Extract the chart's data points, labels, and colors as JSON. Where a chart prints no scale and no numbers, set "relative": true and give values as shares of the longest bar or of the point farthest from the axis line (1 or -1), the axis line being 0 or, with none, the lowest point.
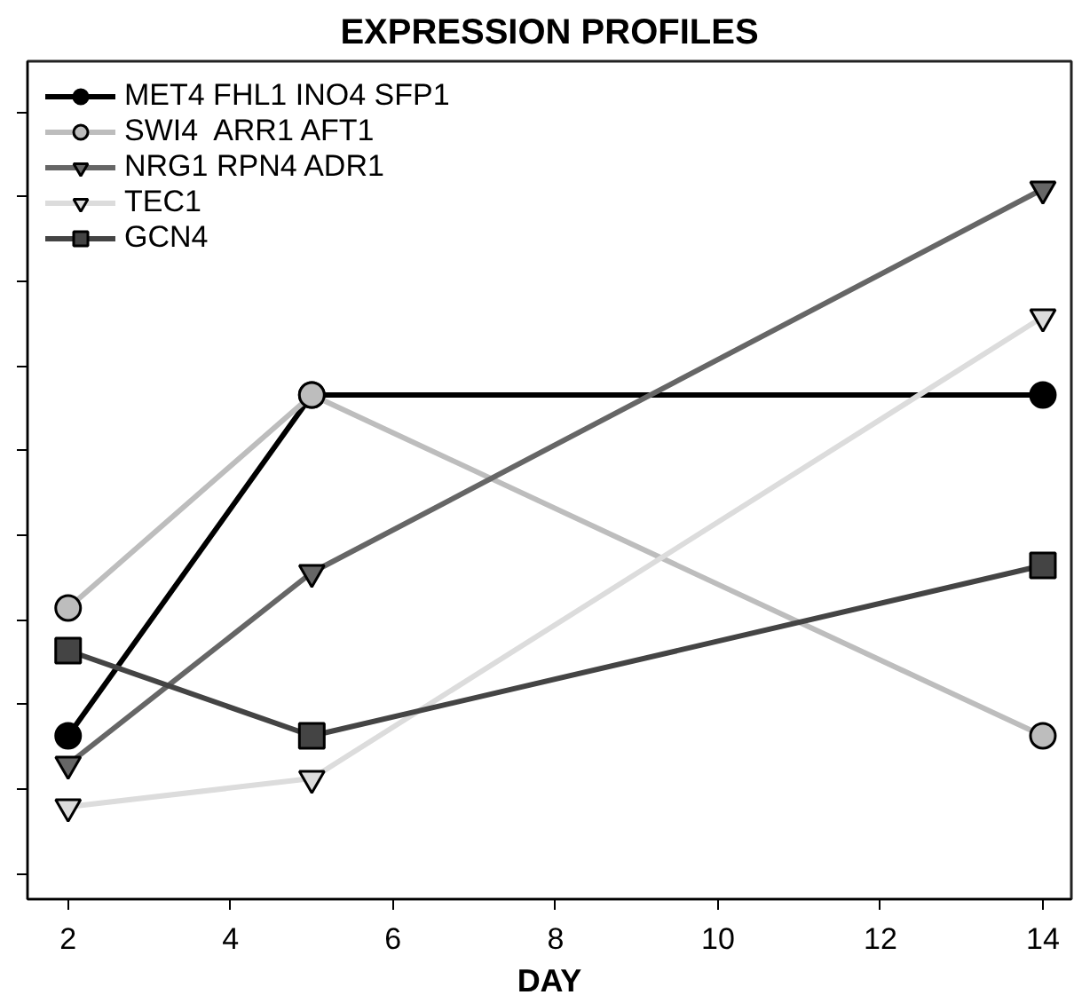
{
  "chart_data": {
    "type": "line",
    "title": "EXPRESSION PROFILES",
    "xlabel": "DAY",
    "relative": true,
    "x": [
      2,
      5,
      14
    ],
    "xlim": [
      1.5,
      14.35
    ],
    "xticks": [
      2,
      4,
      6,
      8,
      10,
      12,
      14
    ],
    "grid": false,
    "legend": "top left",
    "tick_labels": "x",
    "series": [
      {
        "name": "MET4 FHL1 INO4 SFP1",
        "color": "#000000",
        "marker": "circle",
        "values": [
          0.23,
          0.71,
          0.71
        ]
      },
      {
        "name": "SWI4  ARR1 AFT1",
        "color": "#bdbdbd",
        "marker": "circle",
        "values": [
          0.41,
          0.71,
          0.23
        ]
      },
      {
        "name": "NRG1 RPN4 ADR1",
        "color": "#666666",
        "marker": "triangle",
        "values": [
          0.19,
          0.46,
          1
        ]
      },
      {
        "name": "TEC1",
        "color": "#dcdcdc",
        "marker": "triangle",
        "values": [
          0.13,
          0.17,
          0.82
        ]
      },
      {
        "name": "GCN4",
        "color": "#444444",
        "marker": "square",
        "values": [
          0.35,
          0.23,
          0.47
        ]
      }
    ]
  }
}
